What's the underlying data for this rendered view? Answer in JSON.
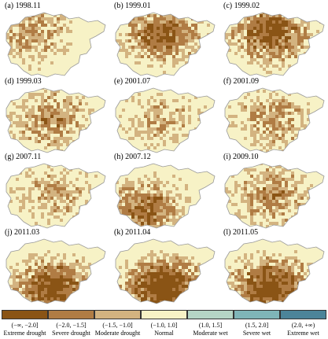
{
  "panels": [
    {
      "label": "(a)  1998.11",
      "severity": 0.35,
      "center": "northwest"
    },
    {
      "label": "(b)  1999.01",
      "severity": 0.55,
      "center": "north"
    },
    {
      "label": "(c)  1999.02",
      "severity": 0.6,
      "center": "north"
    },
    {
      "label": "(d)  1999.03",
      "severity": 0.4,
      "center": "center"
    },
    {
      "label": "(e)  2001.07",
      "severity": 0.3,
      "center": "center"
    },
    {
      "label": "(f)  2001.09",
      "severity": 0.35,
      "center": "center"
    },
    {
      "label": "(g)  2007.11",
      "severity": 0.3,
      "center": "center"
    },
    {
      "label": "(h)  2007.12",
      "severity": 0.5,
      "center": "southwest"
    },
    {
      "label": "(i)  2009.10",
      "severity": 0.4,
      "center": "center"
    },
    {
      "label": "(j)  2011.03",
      "severity": 0.65,
      "center": "south"
    },
    {
      "label": "(k)  2011.04",
      "severity": 0.75,
      "center": "south"
    },
    {
      "label": "(l)  2011.05",
      "severity": 0.7,
      "center": "south"
    }
  ],
  "legend": [
    {
      "range": "(−∞, −2.0]",
      "name": "Extreme drought",
      "color": "#8a5415"
    },
    {
      "range": "(−2.0, −1.5]",
      "name": "Severe drought",
      "color": "#b07c44"
    },
    {
      "range": "(−1.5, −1.0]",
      "name": "Moderate drought",
      "color": "#d3b380"
    },
    {
      "range": "(−1.0, 1.0]",
      "name": "Normal",
      "color": "#f7f2c6"
    },
    {
      "range": "(1.0, 1.5]",
      "name": "Moderate wet",
      "color": "#b5d5c5"
    },
    {
      "range": "(1.5, 2.0]",
      "name": "Severe wet",
      "color": "#7fb5b8"
    },
    {
      "range": "(2.0, +∞)",
      "name": "Extreme wet",
      "color": "#4c8499"
    }
  ]
}
